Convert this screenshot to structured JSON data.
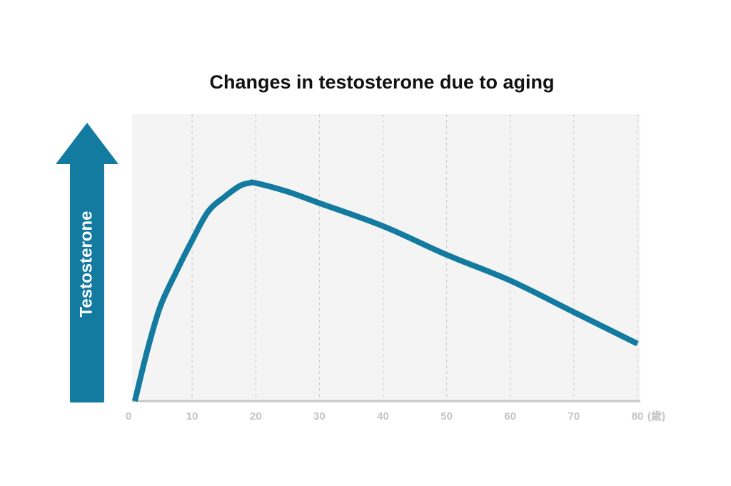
{
  "chart_data": {
    "type": "line",
    "title": "Changes in testosterone due to aging",
    "y_label": "Testosterone",
    "x_unit": "(歲)",
    "x": [
      1,
      3,
      5,
      7.5,
      10,
      12.5,
      15,
      17.5,
      19,
      20,
      25,
      30,
      40,
      50,
      60,
      70,
      80
    ],
    "series": [
      {
        "name": "Testosterone",
        "color": "#137aa0",
        "values": [
          0,
          18,
          33,
          45,
          56,
          66,
          71,
          75,
          76,
          76,
          73,
          69,
          61,
          51,
          42,
          31,
          20
        ]
      }
    ],
    "xlim": [
      0,
      80
    ],
    "xticks": [
      0,
      10,
      20,
      30,
      40,
      50,
      60,
      70,
      80
    ],
    "ylim": [
      0,
      100
    ],
    "grid": true
  }
}
